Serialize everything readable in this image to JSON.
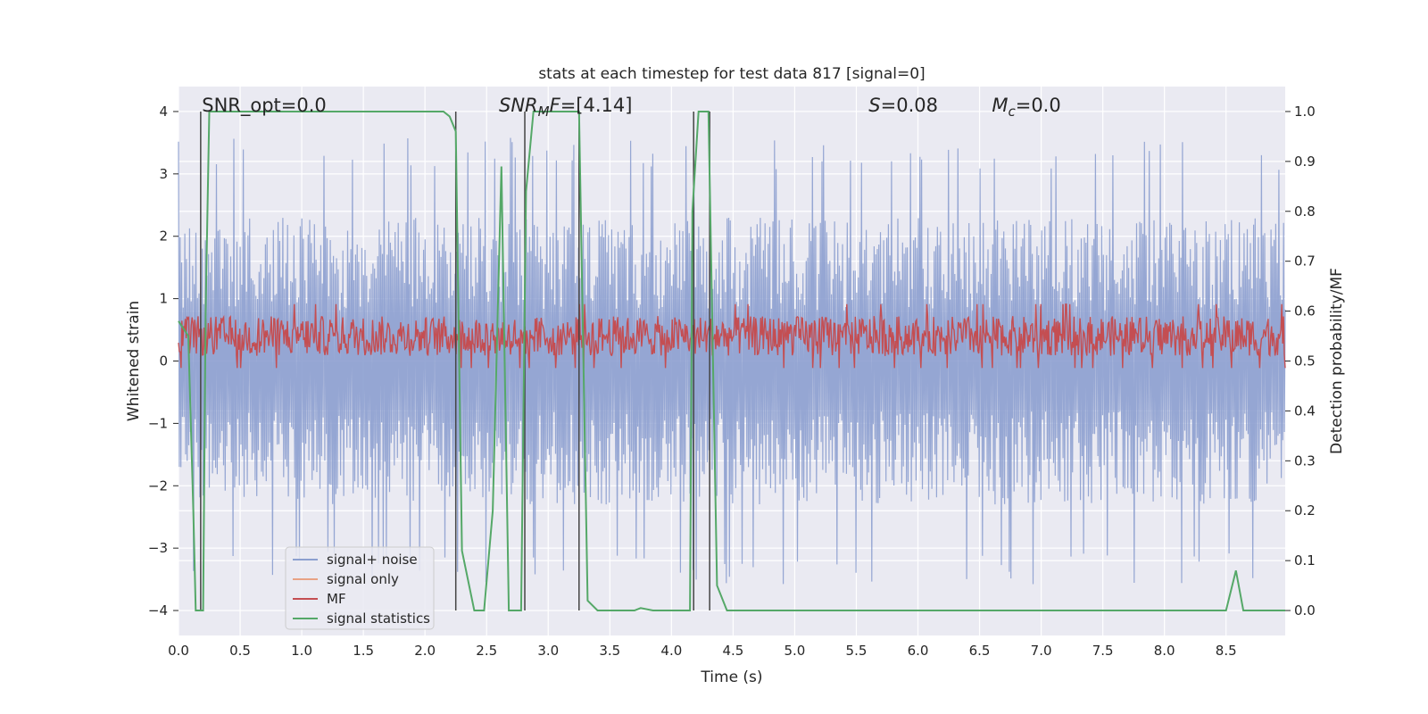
{
  "chart_data": {
    "type": "line",
    "title": "stats at each timestep for test data 817 [signal=0]",
    "xlabel": "Time (s)",
    "ylabel_left": "Whitened strain",
    "ylabel_right": "Detection probability/MF",
    "xlim": [
      0.0,
      8.98
    ],
    "ylim_left": [
      -4.4,
      4.4
    ],
    "ylim_right": [
      -0.05,
      1.05
    ],
    "xticks": [
      0.0,
      0.5,
      1.0,
      1.5,
      2.0,
      2.5,
      3.0,
      3.5,
      4.0,
      4.5,
      5.0,
      5.5,
      6.0,
      6.5,
      7.0,
      7.5,
      8.0,
      8.5
    ],
    "xtick_labels": [
      "0.0",
      "0.5",
      "1.0",
      "1.5",
      "2.0",
      "2.5",
      "3.0",
      "3.5",
      "4.0",
      "4.5",
      "5.0",
      "5.5",
      "6.0",
      "6.5",
      "7.0",
      "7.5",
      "8.0",
      "8.5"
    ],
    "yticks_left": [
      4,
      3,
      2,
      1,
      0,
      -1,
      -2,
      -3,
      -4
    ],
    "ytick_labels_left": [
      "4",
      "3",
      "2",
      "1",
      "0",
      "−1",
      "−2",
      "−3",
      "−4"
    ],
    "yticks_right": [
      1.0,
      0.9,
      0.8,
      0.7,
      0.6,
      0.5,
      0.4,
      0.3,
      0.2,
      0.1,
      0.0
    ],
    "ytick_labels_right": [
      "1.0",
      "0.9",
      "0.8",
      "0.7",
      "0.6",
      "0.5",
      "0.4",
      "0.3",
      "0.2",
      "0.1",
      "0.0"
    ],
    "grid": true,
    "legend_position": "lower-left",
    "annotations": [
      {
        "text": "SNR_opt=0.0",
        "x": 0.19,
        "y": 4.1
      },
      {
        "text": "SNR_MF=[4.14]",
        "x": 2.6,
        "y": 4.1
      },
      {
        "text": "S=0.08",
        "x": 5.6,
        "y": 4.1
      },
      {
        "text": "M_c=0.0",
        "x": 6.6,
        "y": 4.1
      }
    ],
    "vlines": [
      {
        "x": 0.18,
        "ymin": -4,
        "ymax": 4
      },
      {
        "x": 2.25,
        "ymin": -4,
        "ymax": 4
      },
      {
        "x": 2.81,
        "ymin": -4,
        "ymax": 4
      },
      {
        "x": 3.25,
        "ymin": -4,
        "ymax": 4
      },
      {
        "x": 4.18,
        "ymin": -4,
        "ymax": 4
      },
      {
        "x": 4.31,
        "ymin": -4,
        "ymax": 4
      }
    ],
    "series": [
      {
        "name": "signal+ noise",
        "color": "#8c9fcf",
        "axis": "left",
        "type": "noise",
        "amplitude_typical": 2.3,
        "amplitude_peak": 3.6
      },
      {
        "name": "signal only",
        "color": "#e8a285",
        "axis": "left",
        "values": []
      },
      {
        "name": "MF",
        "color": "#c44e52",
        "axis": "right",
        "type": "noise",
        "center": 0.55,
        "spread": 0.04
      },
      {
        "name": "signal statistics",
        "color": "#55a868",
        "axis": "right",
        "x": [
          0.0,
          0.08,
          0.12,
          0.14,
          0.17,
          0.2,
          0.22,
          0.25,
          2.15,
          2.2,
          2.25,
          2.3,
          2.4,
          2.48,
          2.55,
          2.62,
          2.68,
          2.78,
          2.82,
          2.88,
          3.25,
          3.32,
          3.4,
          3.7,
          3.75,
          3.85,
          4.15,
          4.17,
          4.22,
          4.25,
          4.3,
          4.37,
          4.45,
          8.5,
          8.58,
          8.64,
          8.7,
          8.98
        ],
        "y": [
          0.58,
          0.55,
          0.2,
          0.0,
          0.0,
          0.0,
          0.6,
          1.0,
          1.0,
          0.99,
          0.96,
          0.12,
          0.0,
          0.0,
          0.2,
          0.89,
          0.0,
          0.0,
          0.84,
          1.0,
          1.0,
          0.02,
          0.0,
          0.0,
          0.005,
          0.0,
          0.0,
          0.8,
          1.0,
          1.0,
          1.0,
          0.05,
          0.0,
          0.0,
          0.08,
          0.0,
          0.0,
          0.0
        ]
      }
    ]
  }
}
